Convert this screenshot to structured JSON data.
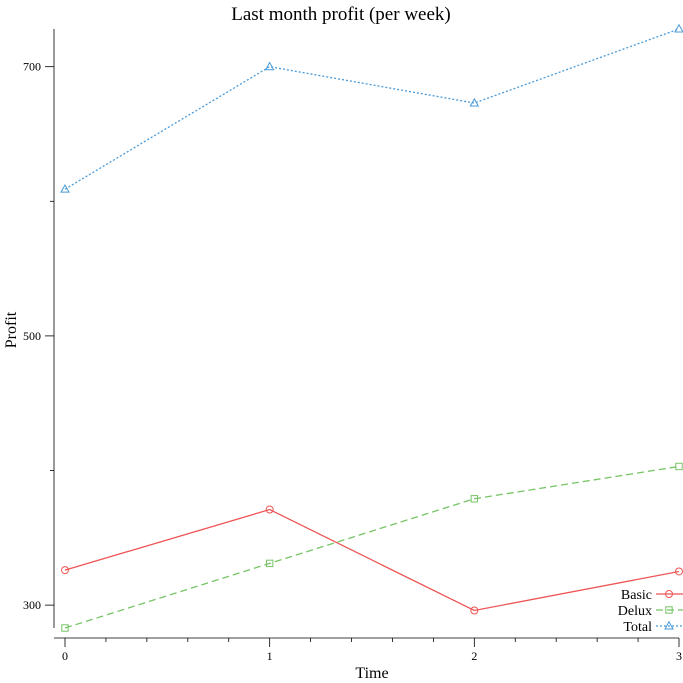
{
  "chart_data": {
    "type": "line",
    "title": "Last month profit (per week)",
    "xlabel": "Time",
    "ylabel": "Profit",
    "x": [
      0,
      1,
      2,
      3
    ],
    "xlim": [
      0,
      3
    ],
    "ylim": [
      283,
      728
    ],
    "x_major_ticks": [
      0,
      1,
      2,
      3
    ],
    "x_minor_ticks": [
      0.2,
      0.4,
      0.6,
      0.8,
      1.2,
      1.4,
      1.6,
      1.8,
      2.2,
      2.4,
      2.6,
      2.8
    ],
    "y_major_ticks": [
      300,
      500,
      700
    ],
    "y_minor_ticks": [
      400,
      600
    ],
    "grid": false,
    "legend_position": "bottom-right",
    "series": [
      {
        "name": "Basic",
        "values": [
          326,
          371,
          296,
          325
        ],
        "color": "#ee5555",
        "dash": "solid",
        "marker": "circle"
      },
      {
        "name": "Delux",
        "values": [
          283,
          331,
          379,
          403
        ],
        "color": "#77c466",
        "dash": "dashed",
        "marker": "square"
      },
      {
        "name": "Total",
        "values": [
          609,
          700,
          673,
          728
        ],
        "color": "#4a9ad8",
        "dash": "dotted",
        "marker": "triangle"
      }
    ]
  }
}
